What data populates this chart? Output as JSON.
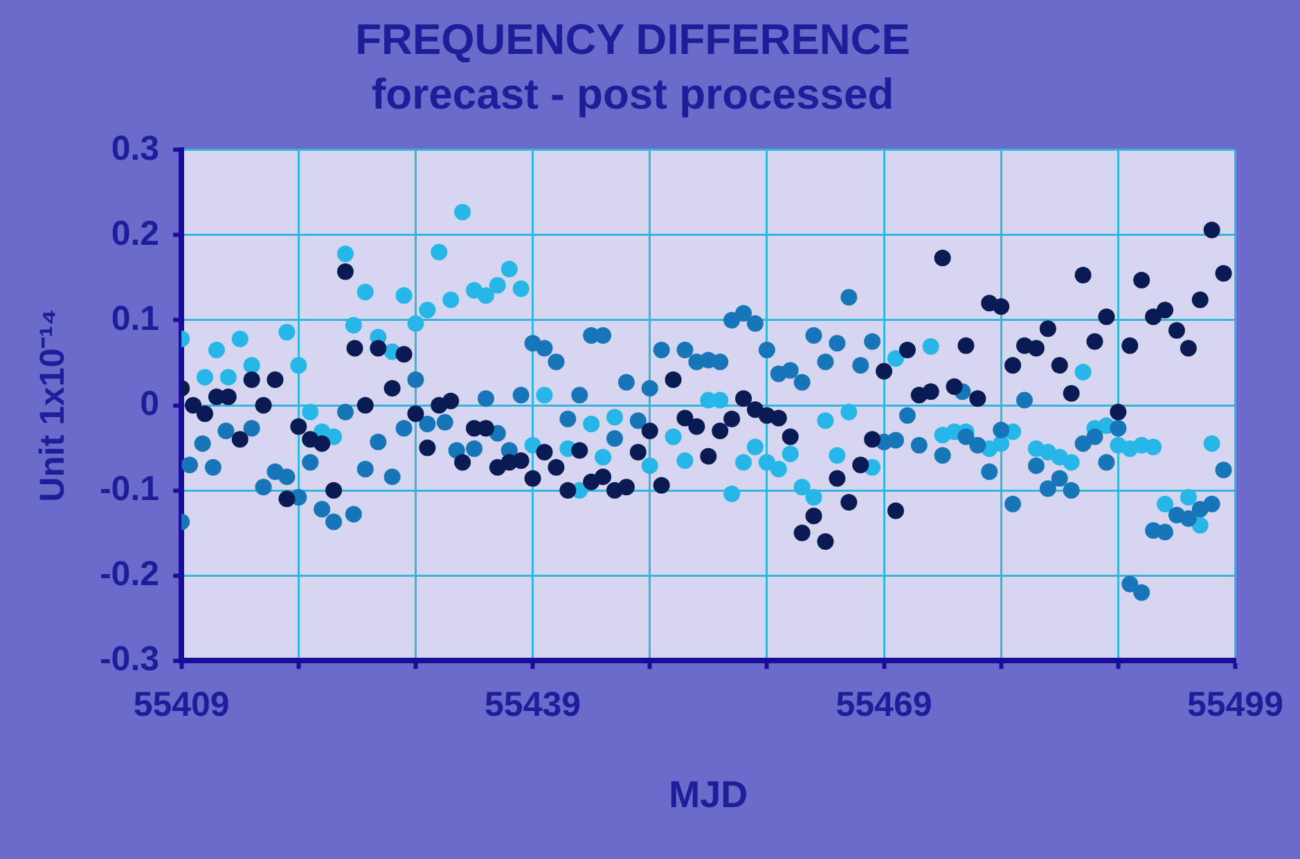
{
  "chart_data": {
    "type": "scatter",
    "title": "FREQUENCY DIFFERENCE",
    "subtitle": "forecast - post processed",
    "xlabel": "MJD",
    "ylabel": "Unit 1x10⁻¹⁴",
    "xlim": [
      55409,
      55499
    ],
    "xticks": [
      55409,
      {
        "value": 55419,
        "label": null
      },
      {
        "value": 55429,
        "label": null
      },
      55439,
      {
        "value": 55449,
        "label": null
      },
      {
        "value": 55459,
        "label": null
      },
      55469,
      {
        "value": 55479,
        "label": null
      },
      {
        "value": 55489,
        "label": null
      },
      55499
    ],
    "ylim": [
      -0.3,
      0.3
    ],
    "yticks": [
      -0.3,
      -0.2,
      -0.1,
      0,
      0.1,
      0.2,
      0.3
    ],
    "grid": true,
    "legend": false,
    "marker": "circle",
    "series": [
      {
        "color": "#0a1a52",
        "x": [
          55409,
          55410,
          55411,
          55412,
          55413,
          55414,
          55415,
          55416,
          55417,
          55418,
          55419,
          55420,
          55421,
          55422,
          55423,
          55423.8,
          55424.7,
          55425.8,
          55427,
          55428,
          55429,
          55430,
          55431,
          55432,
          55433,
          55434,
          55435,
          55436,
          55437,
          55438,
          55439,
          55440,
          55441,
          55442,
          55443,
          55444,
          55445,
          55446,
          55447,
          55448,
          55449,
          55450,
          55451,
          55452,
          55453,
          55454,
          55455,
          55456,
          55457,
          55458,
          55459,
          55460,
          55461,
          55462,
          55463,
          55464,
          55465,
          55466,
          55467,
          55468,
          55469,
          55470,
          55471,
          55472,
          55473,
          55474,
          55475,
          55476,
          55477,
          55478,
          55479,
          55480,
          55481,
          55482,
          55483,
          55484,
          55485,
          55486,
          55487,
          55488,
          55489,
          55490,
          55491,
          55492,
          55493,
          55494,
          55495,
          55496,
          55497,
          55498
        ],
        "values": [
          0.02,
          0,
          -0.01,
          0.01,
          0.01,
          -0.04,
          0.03,
          0,
          0.03,
          -0.11,
          -0.025,
          -0.04,
          -0.045,
          -0.1,
          0.157,
          0.067,
          0,
          0.067,
          0.02,
          0.06,
          -0.01,
          -0.05,
          0,
          0.005,
          -0.067,
          -0.027,
          -0.027,
          -0.073,
          -0.067,
          -0.065,
          -0.086,
          -0.055,
          -0.073,
          -0.1,
          -0.053,
          -0.09,
          -0.084,
          -0.1,
          -0.096,
          -0.055,
          -0.03,
          -0.094,
          0.03,
          -0.015,
          -0.025,
          -0.06,
          -0.03,
          -0.016,
          0.008,
          -0.005,
          -0.012,
          -0.015,
          -0.037,
          -0.15,
          -0.13,
          -0.16,
          -0.086,
          -0.114,
          -0.07,
          -0.04,
          0.04,
          -0.124,
          0.065,
          0.012,
          0.016,
          0.173,
          0.022,
          0.07,
          0.008,
          0.12,
          0.116,
          0.047,
          0.07,
          0.067,
          0.09,
          0.047,
          0.014,
          0.153,
          0.075,
          0.104,
          -0.008,
          0.07,
          0.147,
          0.104,
          0.112,
          0.088,
          0.067,
          0.124,
          0.206,
          0.155
        ]
      },
      {
        "color": "#1676b8",
        "x": [
          55409,
          55409.7,
          55410.8,
          55411.7,
          55412.8,
          55415,
          55416,
          55417,
          55418,
          55419,
          55420,
          55421,
          55422,
          55423,
          55423.7,
          55424.7,
          55425.8,
          55427,
          55428,
          55429,
          55430,
          55431.5,
          55432.5,
          55434,
          55435,
          55436,
          55437,
          55438,
          55439,
          55440,
          55441,
          55442,
          55443,
          55444,
          55445,
          55446,
          55447,
          55448,
          55449,
          55450,
          55452,
          55453,
          55454,
          55455,
          55456,
          55457,
          55458,
          55459,
          55460,
          55461,
          55462,
          55463,
          55464,
          55465,
          55466,
          55467,
          55468,
          55469,
          55470,
          55471,
          55472,
          55474,
          55475.7,
          55476,
          55477,
          55478,
          55479,
          55480,
          55481,
          55482,
          55483,
          55484,
          55485,
          55486,
          55487,
          55488,
          55489,
          55490,
          55491,
          55492,
          55493,
          55494,
          55495,
          55496,
          55497,
          55498
        ],
        "values": [
          -0.137,
          -0.07,
          -0.045,
          -0.073,
          -0.03,
          -0.027,
          -0.096,
          -0.078,
          -0.084,
          -0.108,
          -0.067,
          -0.122,
          -0.137,
          -0.008,
          -0.128,
          -0.075,
          -0.043,
          -0.084,
          -0.027,
          0.03,
          -0.022,
          -0.02,
          -0.053,
          -0.051,
          0.008,
          -0.033,
          -0.053,
          0.012,
          0.073,
          0.067,
          0.051,
          -0.016,
          0.012,
          0.082,
          0.082,
          -0.039,
          0.027,
          -0.018,
          0.02,
          0.065,
          0.065,
          0.051,
          0.053,
          0.051,
          0.1,
          0.108,
          0.096,
          0.065,
          0.037,
          0.041,
          0.027,
          0.082,
          0.051,
          0.073,
          0.127,
          0.047,
          0.075,
          -0.043,
          -0.041,
          -0.012,
          -0.047,
          -0.059,
          0.016,
          -0.037,
          -0.047,
          -0.078,
          -0.029,
          -0.116,
          0.006,
          -0.071,
          -0.098,
          -0.086,
          -0.1,
          -0.045,
          -0.037,
          -0.067,
          -0.027,
          -0.21,
          -0.22,
          -0.147,
          -0.149,
          -0.129,
          -0.133,
          -0.122,
          -0.116,
          -0.076
        ]
      },
      {
        "color": "#26b6e8",
        "x": [
          55409,
          55411,
          55412,
          55413,
          55414,
          55415,
          55418,
          55419,
          55420,
          55421,
          55422,
          55423,
          55423.7,
          55424.7,
          55425.8,
          55427,
          55428,
          55429,
          55430,
          55431,
          55432,
          55433,
          55434,
          55435,
          55436,
          55437,
          55438,
          55439,
          55440,
          55442,
          55443,
          55444,
          55445,
          55446,
          55449,
          55451,
          55452,
          55454,
          55455,
          55456,
          55457,
          55458,
          55459,
          55460,
          55461,
          55462,
          55463,
          55464,
          55465,
          55466,
          55468,
          55470,
          55473,
          55474,
          55475,
          55476,
          55478,
          55479,
          55480,
          55482,
          55483,
          55484,
          55485,
          55486,
          55487,
          55488,
          55489,
          55490,
          55491,
          55492,
          55493,
          55495,
          55496,
          55497
        ],
        "values": [
          0.078,
          0.033,
          0.065,
          0.033,
          0.078,
          0.047,
          0.086,
          0.047,
          -0.008,
          -0.031,
          -0.037,
          0.178,
          0.094,
          0.133,
          0.08,
          0.063,
          0.129,
          0.096,
          0.112,
          0.18,
          0.124,
          0.227,
          0.135,
          0.129,
          0.141,
          0.16,
          0.137,
          -0.047,
          0.012,
          -0.051,
          -0.1,
          -0.022,
          -0.061,
          -0.014,
          -0.071,
          -0.037,
          -0.065,
          0.006,
          0.006,
          -0.104,
          -0.067,
          -0.049,
          -0.067,
          -0.075,
          -0.057,
          -0.096,
          -0.108,
          -0.018,
          -0.059,
          -0.008,
          -0.073,
          0.055,
          0.069,
          -0.035,
          -0.031,
          -0.031,
          -0.051,
          -0.045,
          -0.031,
          -0.051,
          -0.055,
          -0.061,
          -0.067,
          0.039,
          -0.027,
          -0.024,
          -0.047,
          -0.051,
          -0.047,
          -0.049,
          -0.116,
          -0.108,
          -0.141,
          -0.045
        ]
      }
    ]
  }
}
